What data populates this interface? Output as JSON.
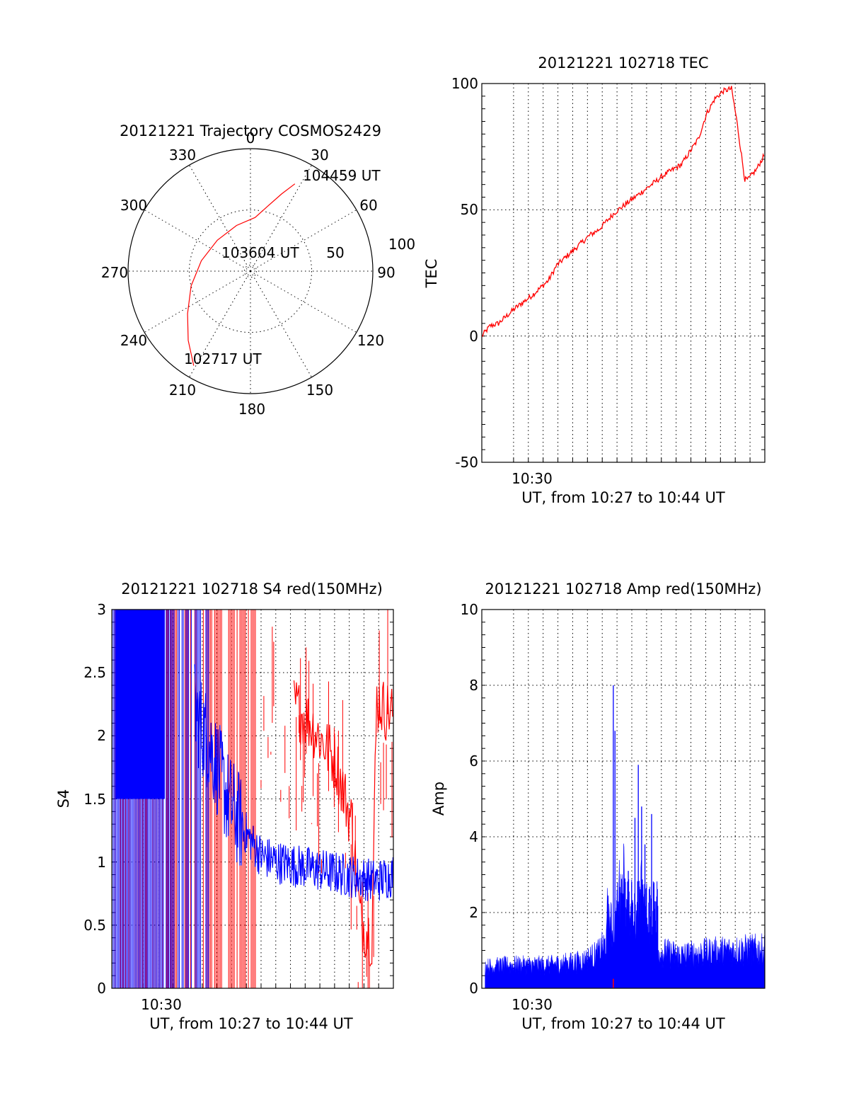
{
  "colors": {
    "red": "#ff0000",
    "blue": "#0000ff",
    "axis": "#000000"
  },
  "chart_data": [
    {
      "type": "polar",
      "title": "20121221 Trajectory COSMOS2429",
      "angle_labels": [
        "0",
        "30",
        "60",
        "90",
        "120",
        "150",
        "180",
        "210",
        "240",
        "270",
        "300",
        "330"
      ],
      "radius_labels": [
        "50",
        "100"
      ],
      "radius_range": [
        0,
        100
      ],
      "grid": true,
      "trajectory": {
        "color": "red",
        "points": [
          {
            "az": 211,
            "r": 90
          },
          {
            "az": 222,
            "r": 76
          },
          {
            "az": 236,
            "r": 62
          },
          {
            "az": 256,
            "r": 50
          },
          {
            "az": 282,
            "r": 41
          },
          {
            "az": 313,
            "r": 37
          },
          {
            "az": 343,
            "r": 39
          },
          {
            "az": 5,
            "r": 44
          },
          {
            "az": 15,
            "r": 55
          },
          {
            "az": 22,
            "r": 68
          },
          {
            "az": 27,
            "r": 80
          }
        ]
      },
      "annotations": [
        "104459 UT",
        "103604 UT",
        "102717 UT"
      ]
    },
    {
      "type": "line",
      "title": "20121221 102718 TEC",
      "ylabel": "TEC",
      "xlabel": "UT, from 10:27 to 10:44 UT",
      "xtick_labels": [
        "10:30"
      ],
      "ytick_labels": [
        "-50",
        "0",
        "50",
        "100"
      ],
      "ylim": [
        -50,
        100
      ],
      "x_minutes_range": [
        0,
        17
      ],
      "grid": true,
      "series": [
        {
          "color": "red",
          "x": [
            0,
            0.5,
            1,
            2,
            3,
            4,
            4.5,
            5,
            6,
            6.5,
            7,
            8,
            9,
            10,
            11,
            12,
            13,
            13.5,
            14,
            14.5,
            15,
            15.3,
            15.8,
            16,
            16.5,
            17
          ],
          "y": [
            0,
            4,
            5,
            11,
            16,
            22,
            28,
            31,
            37,
            40,
            42,
            49,
            54,
            59,
            64,
            68,
            78,
            88,
            94,
            97,
            98,
            86,
            62,
            62,
            66,
            72
          ]
        }
      ]
    },
    {
      "type": "line",
      "title": "20121221 102718 S4 red(150MHz)",
      "ylabel": "S4",
      "xlabel": "UT, from 10:27 to 10:44 UT",
      "xtick_labels": [
        "10:30"
      ],
      "ytick_labels": [
        "0",
        "0.5",
        "1",
        "1.5",
        "2",
        "2.5",
        "3"
      ],
      "ylim": [
        0,
        3
      ],
      "x_minutes_range": [
        0,
        17
      ],
      "grid": true,
      "series": [
        {
          "color": "red",
          "x": [
            0,
            3,
            6,
            8,
            10,
            12,
            13.5,
            14.5,
            15,
            15.7,
            16,
            16.5,
            17
          ],
          "y": [
            3.0,
            3.0,
            3.0,
            2.7,
            2.4,
            2.1,
            1.8,
            1.3,
            0.55,
            0.4,
            2.3,
            2.2,
            2.2
          ]
        },
        {
          "color": "blue",
          "x": [
            0,
            2,
            3,
            5,
            6,
            7,
            8,
            9,
            10,
            12,
            14,
            16,
            17
          ],
          "y": [
            3.0,
            3.0,
            3.0,
            2.2,
            1.9,
            1.5,
            1.25,
            1.05,
            1.0,
            0.95,
            0.9,
            0.85,
            0.9
          ]
        }
      ]
    },
    {
      "type": "line",
      "title": "20121221 102718 Amp red(150MHz)",
      "ylabel": "Amp",
      "xlabel": "UT, from 10:27 to 10:44 UT",
      "xtick_labels": [
        "10:30"
      ],
      "ytick_labels": [
        "0",
        "2",
        "4",
        "6",
        "8",
        "10"
      ],
      "ylim": [
        0,
        10
      ],
      "x_minutes_range": [
        0,
        17
      ],
      "grid": true,
      "series": [
        {
          "color": "blue",
          "x": [
            0,
            2,
            4,
            6,
            7,
            7.5,
            7.9,
            8.3,
            9,
            9.5,
            10,
            12,
            14,
            16,
            17
          ],
          "y": [
            0.55,
            0.6,
            0.6,
            0.7,
            0.9,
            1.2,
            8.0,
            2.0,
            4.5,
            3.0,
            1.0,
            0.85,
            0.95,
            1.0,
            1.0
          ]
        }
      ]
    }
  ]
}
